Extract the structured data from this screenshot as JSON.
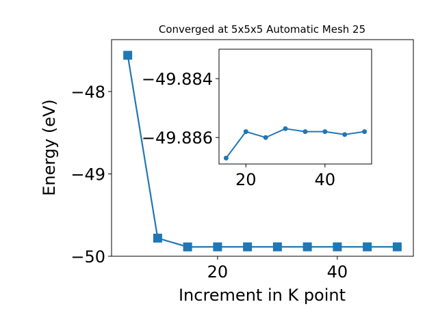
{
  "chart_data": [
    {
      "type": "line",
      "title": "Converged at 5x5x5 Automatic Mesh 25",
      "xlabel": "Increment in K point",
      "ylabel": "Energy (eV)",
      "xlim": [
        2.3,
        52.7
      ],
      "ylim": [
        -50.0,
        -47.37
      ],
      "x_ticks": [
        20,
        40
      ],
      "y_ticks": [
        -48,
        -49,
        -50
      ],
      "x_tick_labels": [
        "20",
        "40"
      ],
      "y_tick_labels": [
        "−48",
        "−49",
        "−50"
      ],
      "marker": "square",
      "color": "#1f77b4",
      "series": [
        {
          "x": [
            5,
            10,
            15,
            20,
            25,
            30,
            35,
            40,
            45,
            50
          ],
          "y": [
            -47.56,
            -49.78,
            -49.8867,
            -49.8858,
            -49.886,
            -49.8857,
            -49.8858,
            -49.8858,
            -49.8859,
            -49.8858
          ]
        }
      ]
    },
    {
      "type": "line",
      "role": "inset",
      "xlim": [
        13.2,
        51.8
      ],
      "ylim": [
        -49.8869,
        -49.883
      ],
      "x_ticks": [
        20,
        40
      ],
      "y_ticks": [
        -49.886,
        -49.884
      ],
      "x_tick_labels": [
        "20",
        "40"
      ],
      "y_tick_labels": [
        "−49.886",
        "−49.884"
      ],
      "marker": "circle",
      "color": "#1f77b4",
      "series": [
        {
          "x": [
            15,
            20,
            25,
            30,
            35,
            40,
            45,
            50
          ],
          "y": [
            -49.8867,
            -49.8858,
            -49.886,
            -49.8857,
            -49.8858,
            -49.8858,
            -49.8859,
            -49.8858
          ]
        }
      ]
    }
  ]
}
